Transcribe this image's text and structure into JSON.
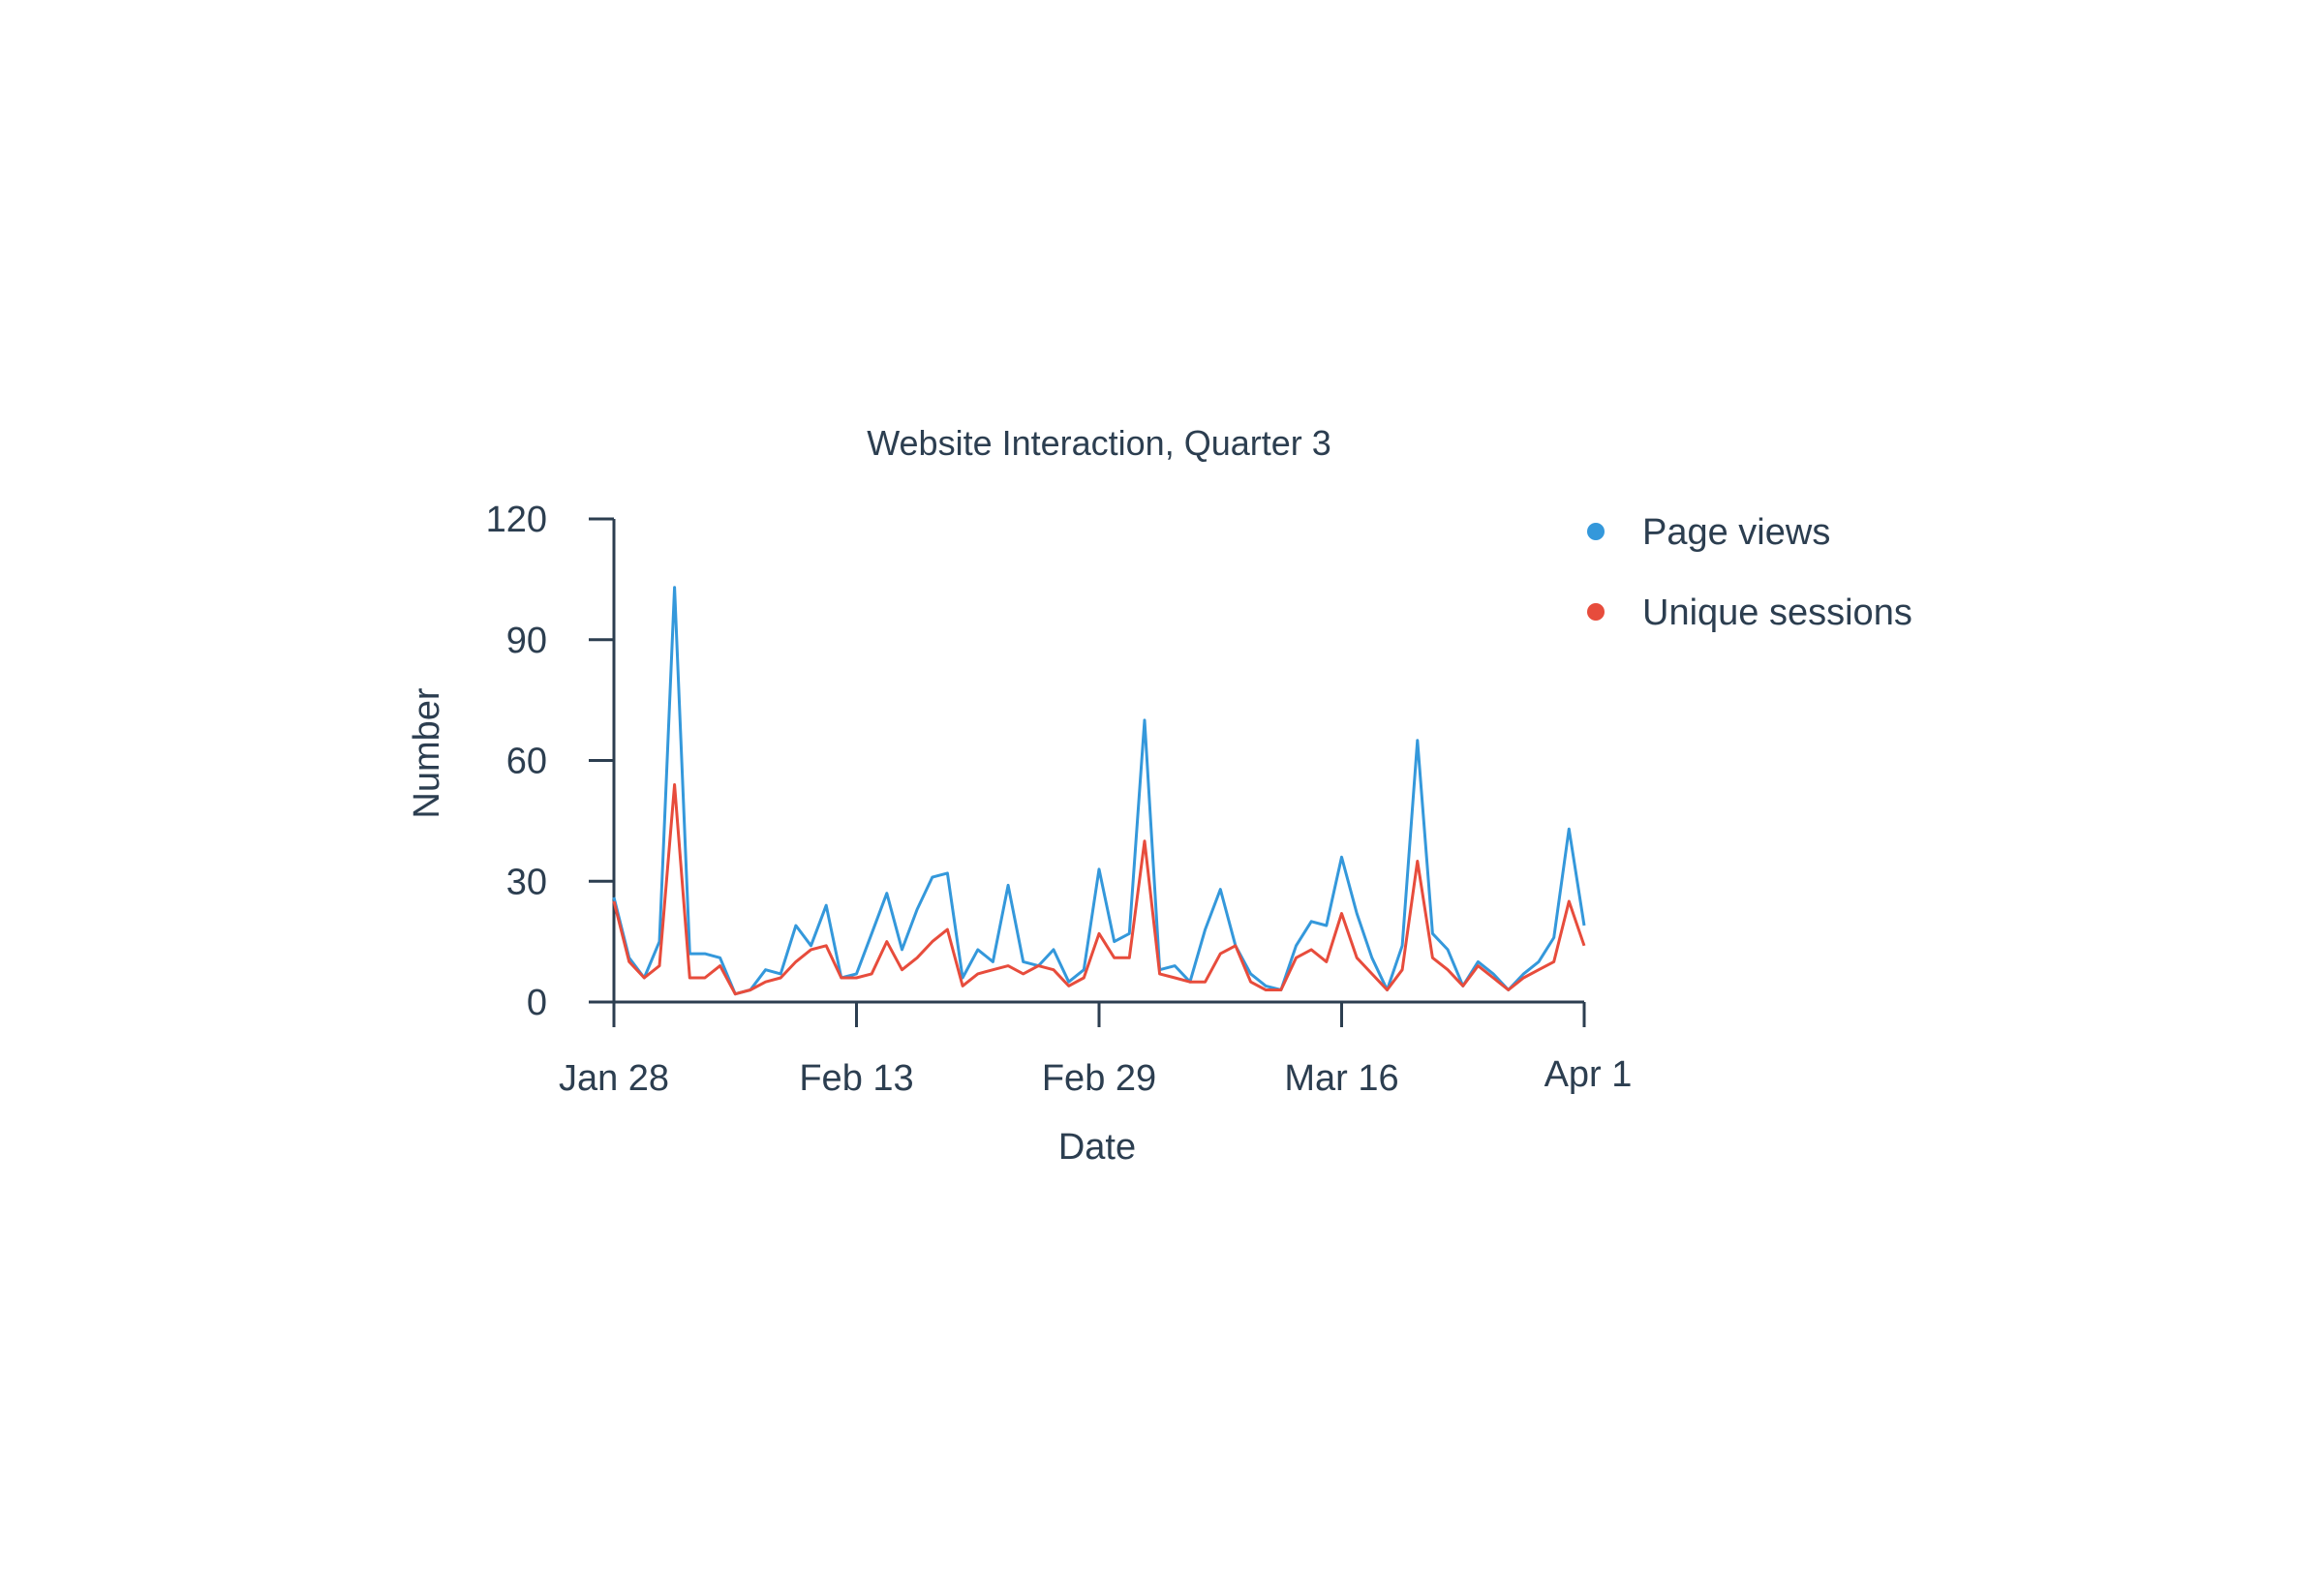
{
  "chart_data": {
    "type": "line",
    "title": "Website Interaction, Quarter 3",
    "xlabel": "Date",
    "ylabel": "Number",
    "ylim": [
      0,
      120
    ],
    "yticks": [
      0,
      30,
      60,
      90,
      120
    ],
    "xlim": [
      "2024-01-28",
      "2024-04-01"
    ],
    "xticks": [
      {
        "date": "2024-01-28",
        "label": "Jan 28"
      },
      {
        "date": "2024-02-13",
        "label": "Feb 13"
      },
      {
        "date": "2024-02-29",
        "label": "Feb 29"
      },
      {
        "date": "2024-03-16",
        "label": "Mar 16"
      },
      {
        "date": "2024-04-01",
        "label": "Apr 1"
      }
    ],
    "legend_position": "top-right",
    "grid": false,
    "x": [
      "2024-01-28",
      "2024-01-29",
      "2024-01-30",
      "2024-01-31",
      "2024-02-01",
      "2024-02-02",
      "2024-02-03",
      "2024-02-04",
      "2024-02-05",
      "2024-02-06",
      "2024-02-07",
      "2024-02-08",
      "2024-02-09",
      "2024-02-10",
      "2024-02-11",
      "2024-02-12",
      "2024-02-13",
      "2024-02-14",
      "2024-02-15",
      "2024-02-16",
      "2024-02-17",
      "2024-02-18",
      "2024-02-19",
      "2024-02-20",
      "2024-02-21",
      "2024-02-22",
      "2024-02-23",
      "2024-02-24",
      "2024-02-25",
      "2024-02-26",
      "2024-02-27",
      "2024-02-28",
      "2024-02-29",
      "2024-03-01",
      "2024-03-02",
      "2024-03-03",
      "2024-03-04",
      "2024-03-05",
      "2024-03-06",
      "2024-03-07",
      "2024-03-08",
      "2024-03-09",
      "2024-03-10",
      "2024-03-11",
      "2024-03-12",
      "2024-03-13",
      "2024-03-14",
      "2024-03-15",
      "2024-03-16",
      "2024-03-17",
      "2024-03-18",
      "2024-03-19",
      "2024-03-20",
      "2024-03-21",
      "2024-03-22",
      "2024-03-23",
      "2024-03-24",
      "2024-03-25",
      "2024-03-26",
      "2024-03-27",
      "2024-03-28",
      "2024-03-29",
      "2024-03-30",
      "2024-03-31",
      "2024-04-01"
    ],
    "series": [
      {
        "name": "Page views",
        "color": "#3498db",
        "values": [
          26,
          11,
          6,
          15,
          103,
          12,
          12,
          11,
          2,
          3,
          8,
          7,
          19,
          14,
          24,
          6,
          7,
          17,
          27,
          13,
          23,
          31,
          32,
          6,
          13,
          10,
          29,
          10,
          9,
          13,
          5,
          8,
          33,
          15,
          17,
          70,
          8,
          9,
          5,
          18,
          28,
          14,
          7,
          4,
          3,
          14,
          20,
          19,
          36,
          22,
          11,
          3,
          14,
          65,
          17,
          13,
          4,
          10,
          7,
          3,
          7,
          10,
          16,
          43,
          19
        ]
      },
      {
        "name": "Unique sessions",
        "color": "#e74c3c",
        "values": [
          25,
          10,
          6,
          9,
          54,
          6,
          6,
          9,
          2,
          3,
          5,
          6,
          10,
          13,
          14,
          6,
          6,
          7,
          15,
          8,
          11,
          15,
          18,
          4,
          7,
          8,
          9,
          7,
          9,
          8,
          4,
          6,
          17,
          11,
          11,
          40,
          7,
          6,
          5,
          5,
          12,
          14,
          5,
          3,
          3,
          11,
          13,
          10,
          22,
          11,
          7,
          3,
          8,
          35,
          11,
          8,
          4,
          9,
          6,
          3,
          6,
          8,
          10,
          25,
          14
        ]
      }
    ]
  }
}
